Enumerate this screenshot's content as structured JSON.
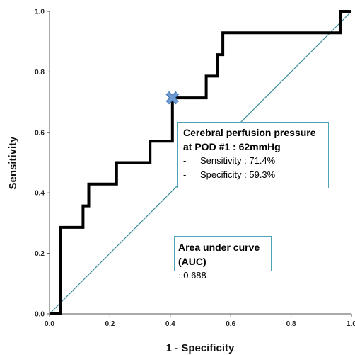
{
  "chart_data": {
    "type": "line",
    "title": "",
    "xlabel": "1 - Specificity",
    "ylabel": "Sensitivity",
    "xlim": [
      0.0,
      1.0
    ],
    "ylim": [
      0.0,
      1.0
    ],
    "x_ticks": [
      "0.0",
      "0.2",
      "0.4",
      "0.6",
      "0.8",
      "1.0"
    ],
    "y_ticks": [
      "0.0",
      "0.2",
      "0.4",
      "0.6",
      "0.8",
      "1.0"
    ],
    "grid": false,
    "series": [
      {
        "kind": "roc-step",
        "color": "#000000",
        "points": [
          [
            0.0,
            0.0
          ],
          [
            0.037,
            0.0
          ],
          [
            0.037,
            0.286
          ],
          [
            0.111,
            0.286
          ],
          [
            0.111,
            0.357
          ],
          [
            0.13,
            0.357
          ],
          [
            0.13,
            0.429
          ],
          [
            0.222,
            0.429
          ],
          [
            0.222,
            0.5
          ],
          [
            0.333,
            0.5
          ],
          [
            0.333,
            0.571
          ],
          [
            0.407,
            0.571
          ],
          [
            0.407,
            0.714
          ],
          [
            0.519,
            0.714
          ],
          [
            0.519,
            0.786
          ],
          [
            0.556,
            0.786
          ],
          [
            0.556,
            0.857
          ],
          [
            0.574,
            0.857
          ],
          [
            0.574,
            0.929
          ],
          [
            0.963,
            0.929
          ],
          [
            0.963,
            1.0
          ],
          [
            1.0,
            1.0
          ]
        ]
      },
      {
        "kind": "reference-line",
        "color": "#3a8f9c",
        "points": [
          [
            0.0,
            0.0
          ],
          [
            1.0,
            1.0
          ]
        ]
      }
    ],
    "marker": {
      "x": 0.407,
      "y": 0.714,
      "symbol": "x",
      "color": "#6d9bd1"
    },
    "annotations": {
      "cutoff": {
        "title_line1": "Cerebral perfusion pressure",
        "title_line2": "at POD #1 : 62mmHg",
        "dash": "-",
        "sensitivity": "Sensitivity : 71.4%",
        "specificity": "Specificity : 59.3%"
      },
      "auc": {
        "title": "Area under curve (AUC)",
        "value": ": 0.688"
      }
    }
  }
}
